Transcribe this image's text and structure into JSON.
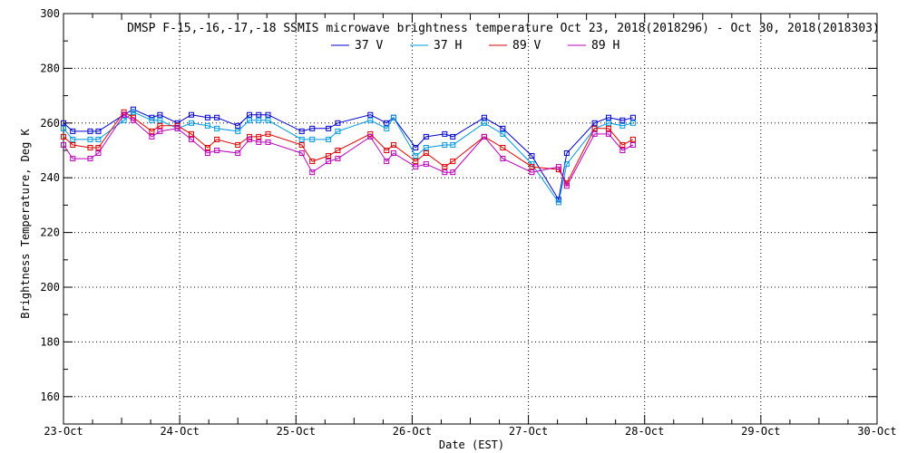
{
  "chart_data": {
    "type": "line",
    "title": "DMSP F-15,-16,-17,-18 SSMIS microwave brightness temperature Oct 23, 2018(2018296) - Oct 30, 2018(2018303)",
    "xlabel": "Date (EST)",
    "ylabel": "Brightness Temperature, Deg K",
    "xlim": [
      0,
      7
    ],
    "ylim": [
      150,
      300
    ],
    "x_ticks": [
      0,
      1,
      2,
      3,
      4,
      5,
      6,
      7
    ],
    "x_tick_labels": [
      "23-Oct",
      "24-Oct",
      "25-Oct",
      "26-Oct",
      "27-Oct",
      "28-Oct",
      "29-Oct",
      "30-Oct"
    ],
    "y_ticks": [
      160,
      180,
      200,
      220,
      240,
      260,
      280,
      300
    ],
    "grid": true,
    "legend_position": "top-center",
    "x": [
      0.0,
      0.08,
      0.23,
      0.3,
      0.52,
      0.6,
      0.76,
      0.83,
      0.98,
      1.1,
      1.24,
      1.32,
      1.5,
      1.6,
      1.68,
      1.76,
      2.05,
      2.14,
      2.28,
      2.36,
      2.64,
      2.78,
      2.84,
      3.03,
      3.12,
      3.28,
      3.35,
      3.62,
      3.78,
      4.03,
      4.26,
      4.33,
      4.57,
      4.69,
      4.81,
      4.9
    ],
    "series": [
      {
        "name": "37 V",
        "color": "#0000cc",
        "values": [
          260,
          257,
          257,
          257,
          263,
          265,
          262,
          263,
          260,
          263,
          262,
          262,
          259,
          263,
          263,
          263,
          257,
          258,
          258,
          260,
          263,
          260,
          262,
          251,
          255,
          256,
          255,
          262,
          258,
          248,
          232,
          249,
          260,
          262,
          261,
          262
        ]
      },
      {
        "name": "37 H",
        "color": "#0099dd",
        "values": [
          258,
          254,
          254,
          254,
          261,
          264,
          261,
          261,
          258,
          260,
          259,
          258,
          257,
          261,
          261,
          261,
          254,
          254,
          254,
          257,
          261,
          258,
          262,
          248,
          251,
          252,
          252,
          260,
          256,
          245,
          231,
          245,
          258,
          260,
          259,
          260
        ]
      },
      {
        "name": "89 V",
        "color": "#dd0000",
        "values": [
          255,
          252,
          251,
          251,
          264,
          262,
          257,
          259,
          259,
          256,
          251,
          254,
          252,
          255,
          255,
          256,
          252,
          246,
          248,
          250,
          256,
          250,
          252,
          246,
          249,
          244,
          246,
          255,
          251,
          244,
          243,
          238,
          258,
          258,
          252,
          254
        ]
      },
      {
        "name": "89 H",
        "color": "#bb00bb",
        "values": [
          252,
          247,
          247,
          249,
          263,
          261,
          255,
          257,
          258,
          254,
          249,
          250,
          249,
          254,
          253,
          253,
          249,
          242,
          246,
          247,
          255,
          246,
          249,
          244,
          245,
          242,
          242,
          255,
          247,
          242,
          244,
          237,
          256,
          256,
          250,
          252
        ]
      }
    ]
  }
}
